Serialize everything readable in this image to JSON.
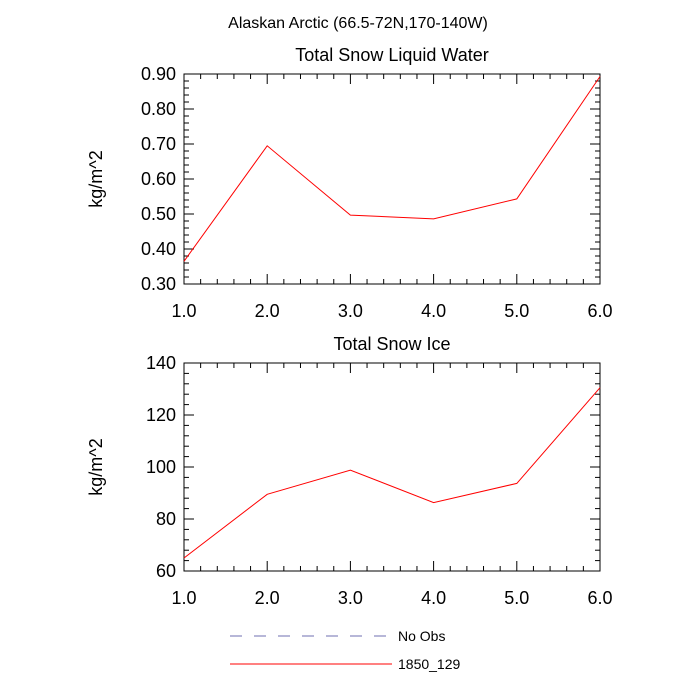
{
  "figure_title": "Alaskan Arctic (66.5-72N,170-140W)",
  "colors": {
    "series": "#ff0000",
    "no_obs": "#6f6fb0",
    "axis": "#000000"
  },
  "legend": [
    {
      "label": "No Obs",
      "style": "dashed",
      "color": "#6f6fb0"
    },
    {
      "label": "1850_129",
      "style": "solid",
      "color": "#ff0000"
    }
  ],
  "chart_data": [
    {
      "type": "line",
      "title": "Total Snow Liquid Water",
      "xlabel": "",
      "ylabel": "kg/m^2",
      "xlim": [
        1.0,
        6.0
      ],
      "ylim": [
        0.3,
        0.9
      ],
      "xticks": [
        "1.0",
        "2.0",
        "3.0",
        "4.0",
        "5.0",
        "6.0"
      ],
      "yticks": [
        "0.30",
        "0.40",
        "0.50",
        "0.60",
        "0.70",
        "0.80",
        "0.90"
      ],
      "x": [
        1,
        2,
        3,
        4,
        5,
        6
      ],
      "series": [
        {
          "name": "1850_129",
          "values": [
            0.365,
            0.695,
            0.497,
            0.486,
            0.543,
            0.893
          ]
        }
      ],
      "grid": false
    },
    {
      "type": "line",
      "title": "Total Snow Ice",
      "xlabel": "",
      "ylabel": "kg/m^2",
      "xlim": [
        1.0,
        6.0
      ],
      "ylim": [
        60,
        140
      ],
      "xticks": [
        "1.0",
        "2.0",
        "3.0",
        "4.0",
        "5.0",
        "6.0"
      ],
      "yticks": [
        "60",
        "80",
        "100",
        "120",
        "140"
      ],
      "x": [
        1,
        2,
        3,
        4,
        5,
        6
      ],
      "series": [
        {
          "name": "1850_129",
          "values": [
            65,
            89.5,
            98.8,
            86.3,
            93.7,
            130.5
          ]
        }
      ],
      "grid": false
    }
  ]
}
